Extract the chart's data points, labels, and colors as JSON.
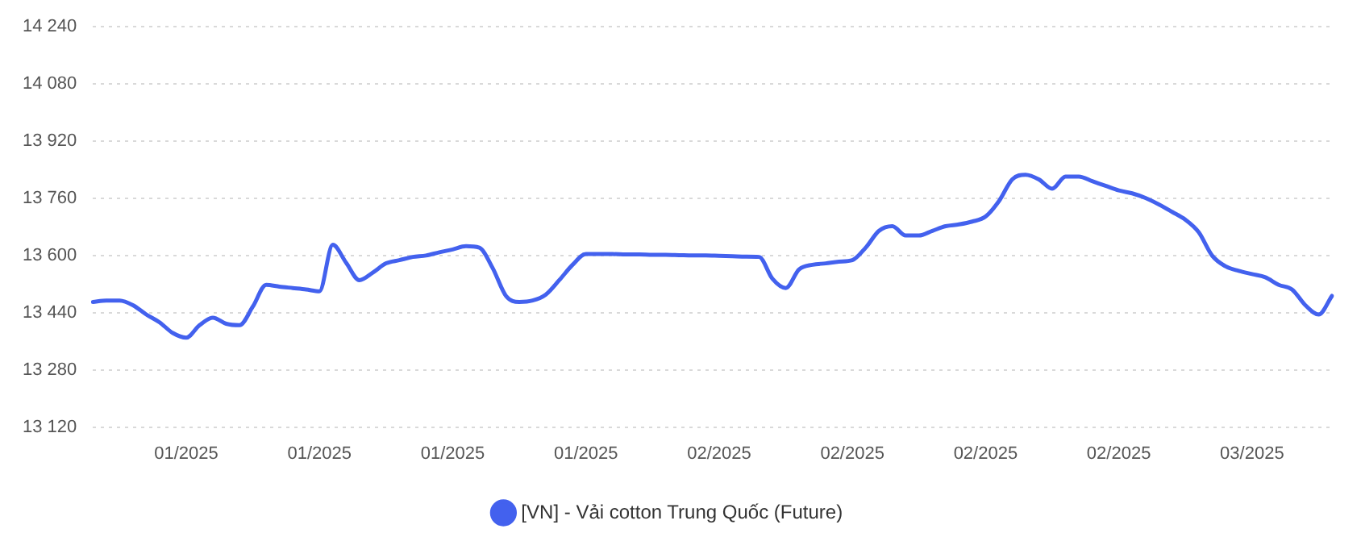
{
  "chart_data": {
    "type": "line",
    "categories": [
      null,
      null,
      null,
      null,
      null,
      null,
      null,
      "01/2025",
      null,
      null,
      null,
      null,
      null,
      null,
      null,
      null,
      null,
      "01/2025",
      null,
      null,
      null,
      null,
      null,
      null,
      null,
      null,
      null,
      "01/2025",
      null,
      null,
      null,
      null,
      null,
      null,
      null,
      null,
      null,
      "01/2025",
      null,
      null,
      null,
      null,
      null,
      null,
      null,
      null,
      null,
      "02/2025",
      null,
      null,
      null,
      null,
      null,
      null,
      null,
      null,
      null,
      "02/2025",
      null,
      null,
      null,
      null,
      null,
      null,
      null,
      null,
      null,
      "02/2025",
      null,
      null,
      null,
      null,
      null,
      null,
      null,
      null,
      null,
      "02/2025",
      null,
      null,
      null,
      null,
      null,
      null,
      null,
      null,
      null,
      "03/2025",
      null,
      null,
      null,
      null,
      null,
      null
    ],
    "series": [
      {
        "name": "[VN] - Vải cotton Trung Quốc (Future)",
        "color": "#4361ee",
        "values": [
          13470,
          13474,
          13474,
          13461,
          13435,
          13413,
          13383,
          13370,
          13405,
          13426,
          13409,
          13405,
          13457,
          13518,
          13513,
          13509,
          13505,
          13500,
          13630,
          13580,
          13531,
          13552,
          13578,
          13587,
          13596,
          13600,
          13609,
          13617,
          13626,
          13622,
          13565,
          13487,
          13470,
          13474,
          13491,
          13531,
          13574,
          13604,
          13604,
          13604,
          13603,
          13603,
          13602,
          13602,
          13601,
          13600,
          13600,
          13599,
          13598,
          13597,
          13596,
          13535,
          13509,
          13561,
          13574,
          13578,
          13583,
          13587,
          13622,
          13669,
          13682,
          13656,
          13656,
          13669,
          13682,
          13687,
          13695,
          13709,
          13752,
          13813,
          13826,
          13813,
          13787,
          13821,
          13821,
          13808,
          13795,
          13782,
          13774,
          13761,
          13743,
          13722,
          13700,
          13665,
          13600,
          13570,
          13557,
          13548,
          13539,
          13518,
          13505,
          13461,
          13435,
          13487
        ]
      }
    ],
    "ylim": [
      13120,
      14240
    ],
    "yticks": [
      {
        "value": 13120,
        "label": "13 120"
      },
      {
        "value": 13280,
        "label": "13 280"
      },
      {
        "value": 13440,
        "label": "13 440"
      },
      {
        "value": 13600,
        "label": "13 600"
      },
      {
        "value": 13760,
        "label": "13 760"
      },
      {
        "value": 13920,
        "label": "13 920"
      },
      {
        "value": 14080,
        "label": "14 080"
      },
      {
        "value": 14240,
        "label": "14 240"
      }
    ],
    "grid": "y",
    "legend": "bottom",
    "marker": "none",
    "line_style": "solid"
  }
}
